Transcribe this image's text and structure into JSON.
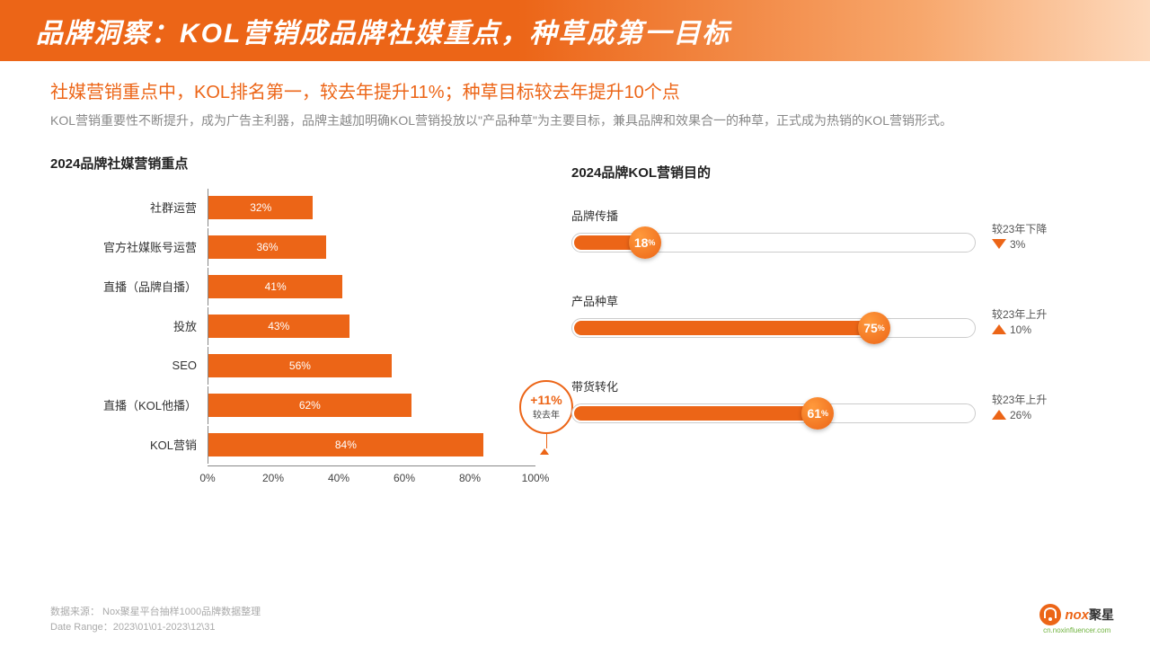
{
  "header": {
    "title": "品牌洞察：KOL营销成品牌社媒重点，种草成第一目标"
  },
  "subtitle": "社媒营销重点中，KOL排名第一，较去年提升11%；种草目标较去年提升10个点",
  "desc": "KOL营销重要性不断提升，成为广告主利器，品牌主越加明确KOL营销投放以\"产品种草\"为主要目标，兼具品牌和效果合一的种草，正式成为热销的KOL营销形式。",
  "barChart": {
    "title": "2024品牌社媒营销重点",
    "xmax": 100,
    "ticks": [
      0,
      20,
      40,
      60,
      80,
      100
    ],
    "tickLabels": [
      "0%",
      "20%",
      "40%",
      "60%",
      "80%",
      "100%"
    ],
    "bar_color": "#ec6517",
    "bars": [
      {
        "label": "社群运营",
        "value": 32,
        "text": "32%"
      },
      {
        "label": "官方社媒账号运营",
        "value": 36,
        "text": "36%"
      },
      {
        "label": "直播（品牌自播）",
        "value": 41,
        "text": "41%"
      },
      {
        "label": "投放",
        "value": 43,
        "text": "43%"
      },
      {
        "label": "SEO",
        "value": 56,
        "text": "56%"
      },
      {
        "label": "直播（KOL他播）",
        "value": 62,
        "text": "62%"
      },
      {
        "label": "KOL营销",
        "value": 84,
        "text": "84%"
      }
    ],
    "callout": {
      "pct": "+11%",
      "sub": "较去年"
    }
  },
  "goals": {
    "title": "2024品牌KOL营销目的",
    "fill_color": "#ec6517",
    "items": [
      {
        "label": "品牌传播",
        "value": 18,
        "valText": "18",
        "deltaLabel": "较23年下降",
        "deltaPct": "3%",
        "dir": "down"
      },
      {
        "label": "产品种草",
        "value": 75,
        "valText": "75",
        "deltaLabel": "较23年上升",
        "deltaPct": "10%",
        "dir": "up"
      },
      {
        "label": "带货转化",
        "value": 61,
        "valText": "61",
        "deltaLabel": "较23年上升",
        "deltaPct": "26%",
        "dir": "up"
      }
    ]
  },
  "footer": {
    "line1": "数据来源： Nox聚星平台抽样1000品牌数据整理",
    "line2": "Date Range：2023\\01\\01-2023\\12\\31"
  },
  "logo": {
    "brand": "nox",
    "cn": "聚星",
    "url": "cn.noxinfluencer.com"
  }
}
